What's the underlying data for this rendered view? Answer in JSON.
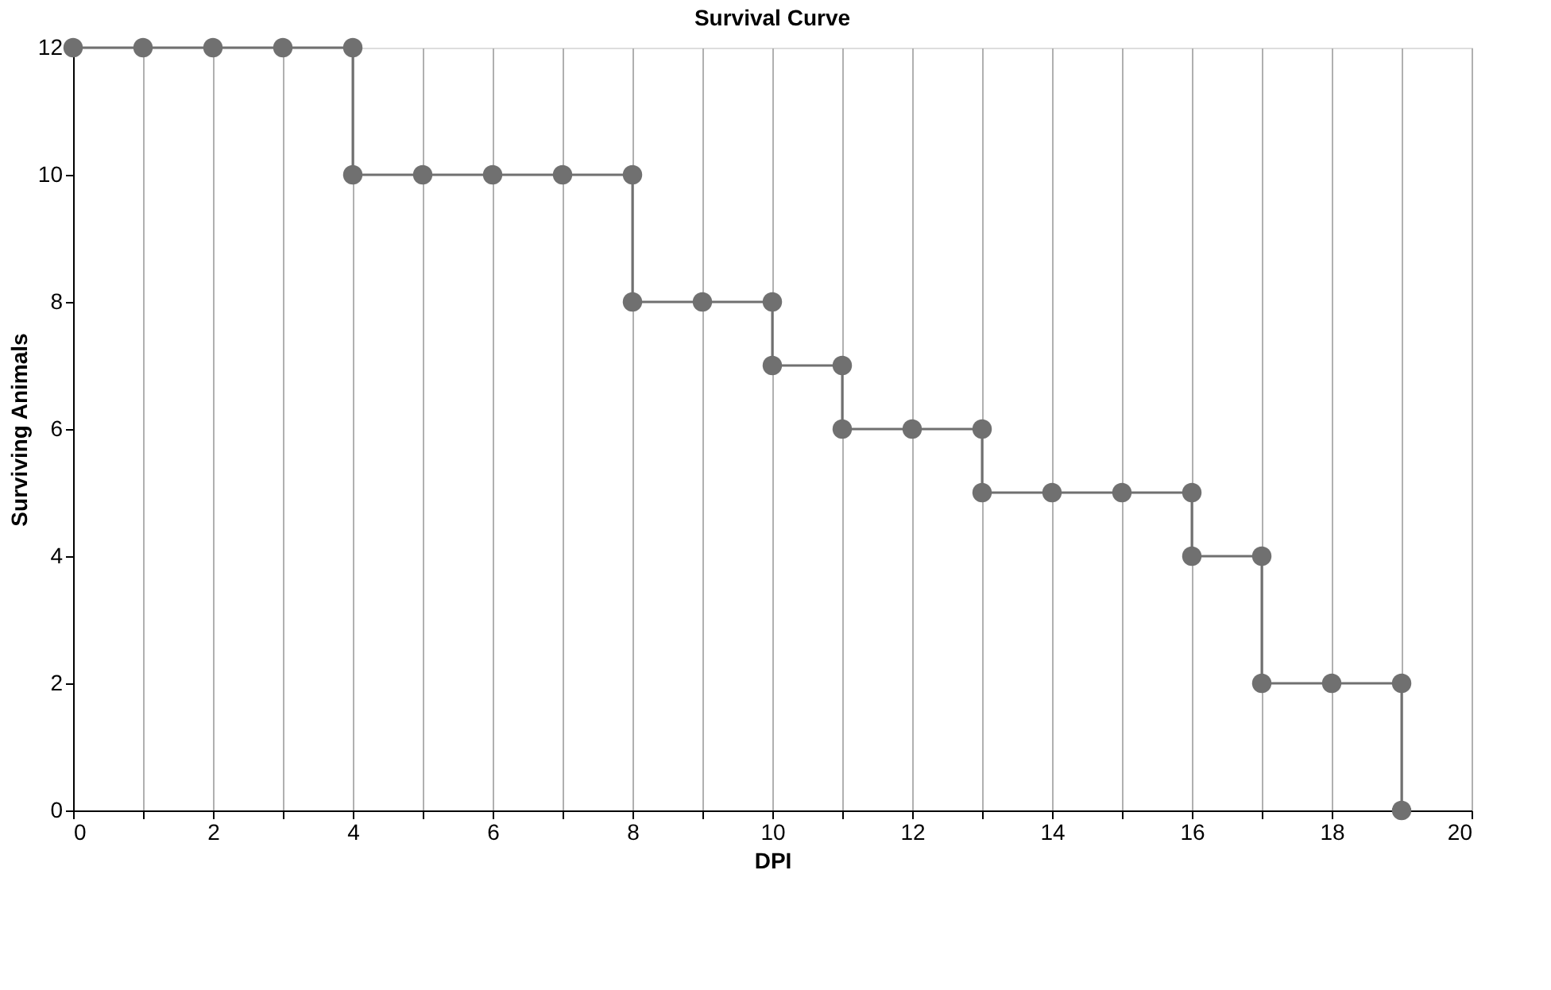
{
  "chart_data": {
    "type": "line",
    "title": "Survival Curve",
    "xlabel": "DPI",
    "ylabel": "Surviving Animals",
    "series": [
      {
        "color": "#707070",
        "x": [
          0,
          1,
          2,
          3,
          4,
          4,
          5,
          6,
          7,
          8,
          8,
          9,
          10,
          10,
          11,
          11,
          12,
          13,
          13,
          14,
          15,
          16,
          16,
          17,
          17,
          18,
          19,
          19
        ],
        "values": [
          12,
          12,
          12,
          12,
          12,
          10,
          10,
          10,
          10,
          10,
          8,
          8,
          8,
          7,
          7,
          6,
          6,
          6,
          5,
          5,
          5,
          5,
          4,
          4,
          2,
          2,
          2,
          0
        ]
      }
    ],
    "xlim": [
      0,
      20
    ],
    "ylim": [
      0,
      12
    ],
    "xticks": [
      0,
      {
        "value": 1,
        "label": null
      },
      2,
      {
        "value": 3,
        "label": null
      },
      4,
      {
        "value": 5,
        "label": null
      },
      6,
      {
        "value": 7,
        "label": null
      },
      8,
      {
        "value": 9,
        "label": null
      },
      10,
      {
        "value": 11,
        "label": null
      },
      12,
      {
        "value": 13,
        "label": null
      },
      14,
      {
        "value": 15,
        "label": null
      },
      16,
      {
        "value": 17,
        "label": null
      },
      18,
      {
        "value": 19,
        "label": null
      },
      20
    ],
    "yticks": [
      0,
      2,
      4,
      6,
      8,
      10,
      12
    ],
    "grid": "x",
    "marker": "circle",
    "line_style": "solid"
  }
}
